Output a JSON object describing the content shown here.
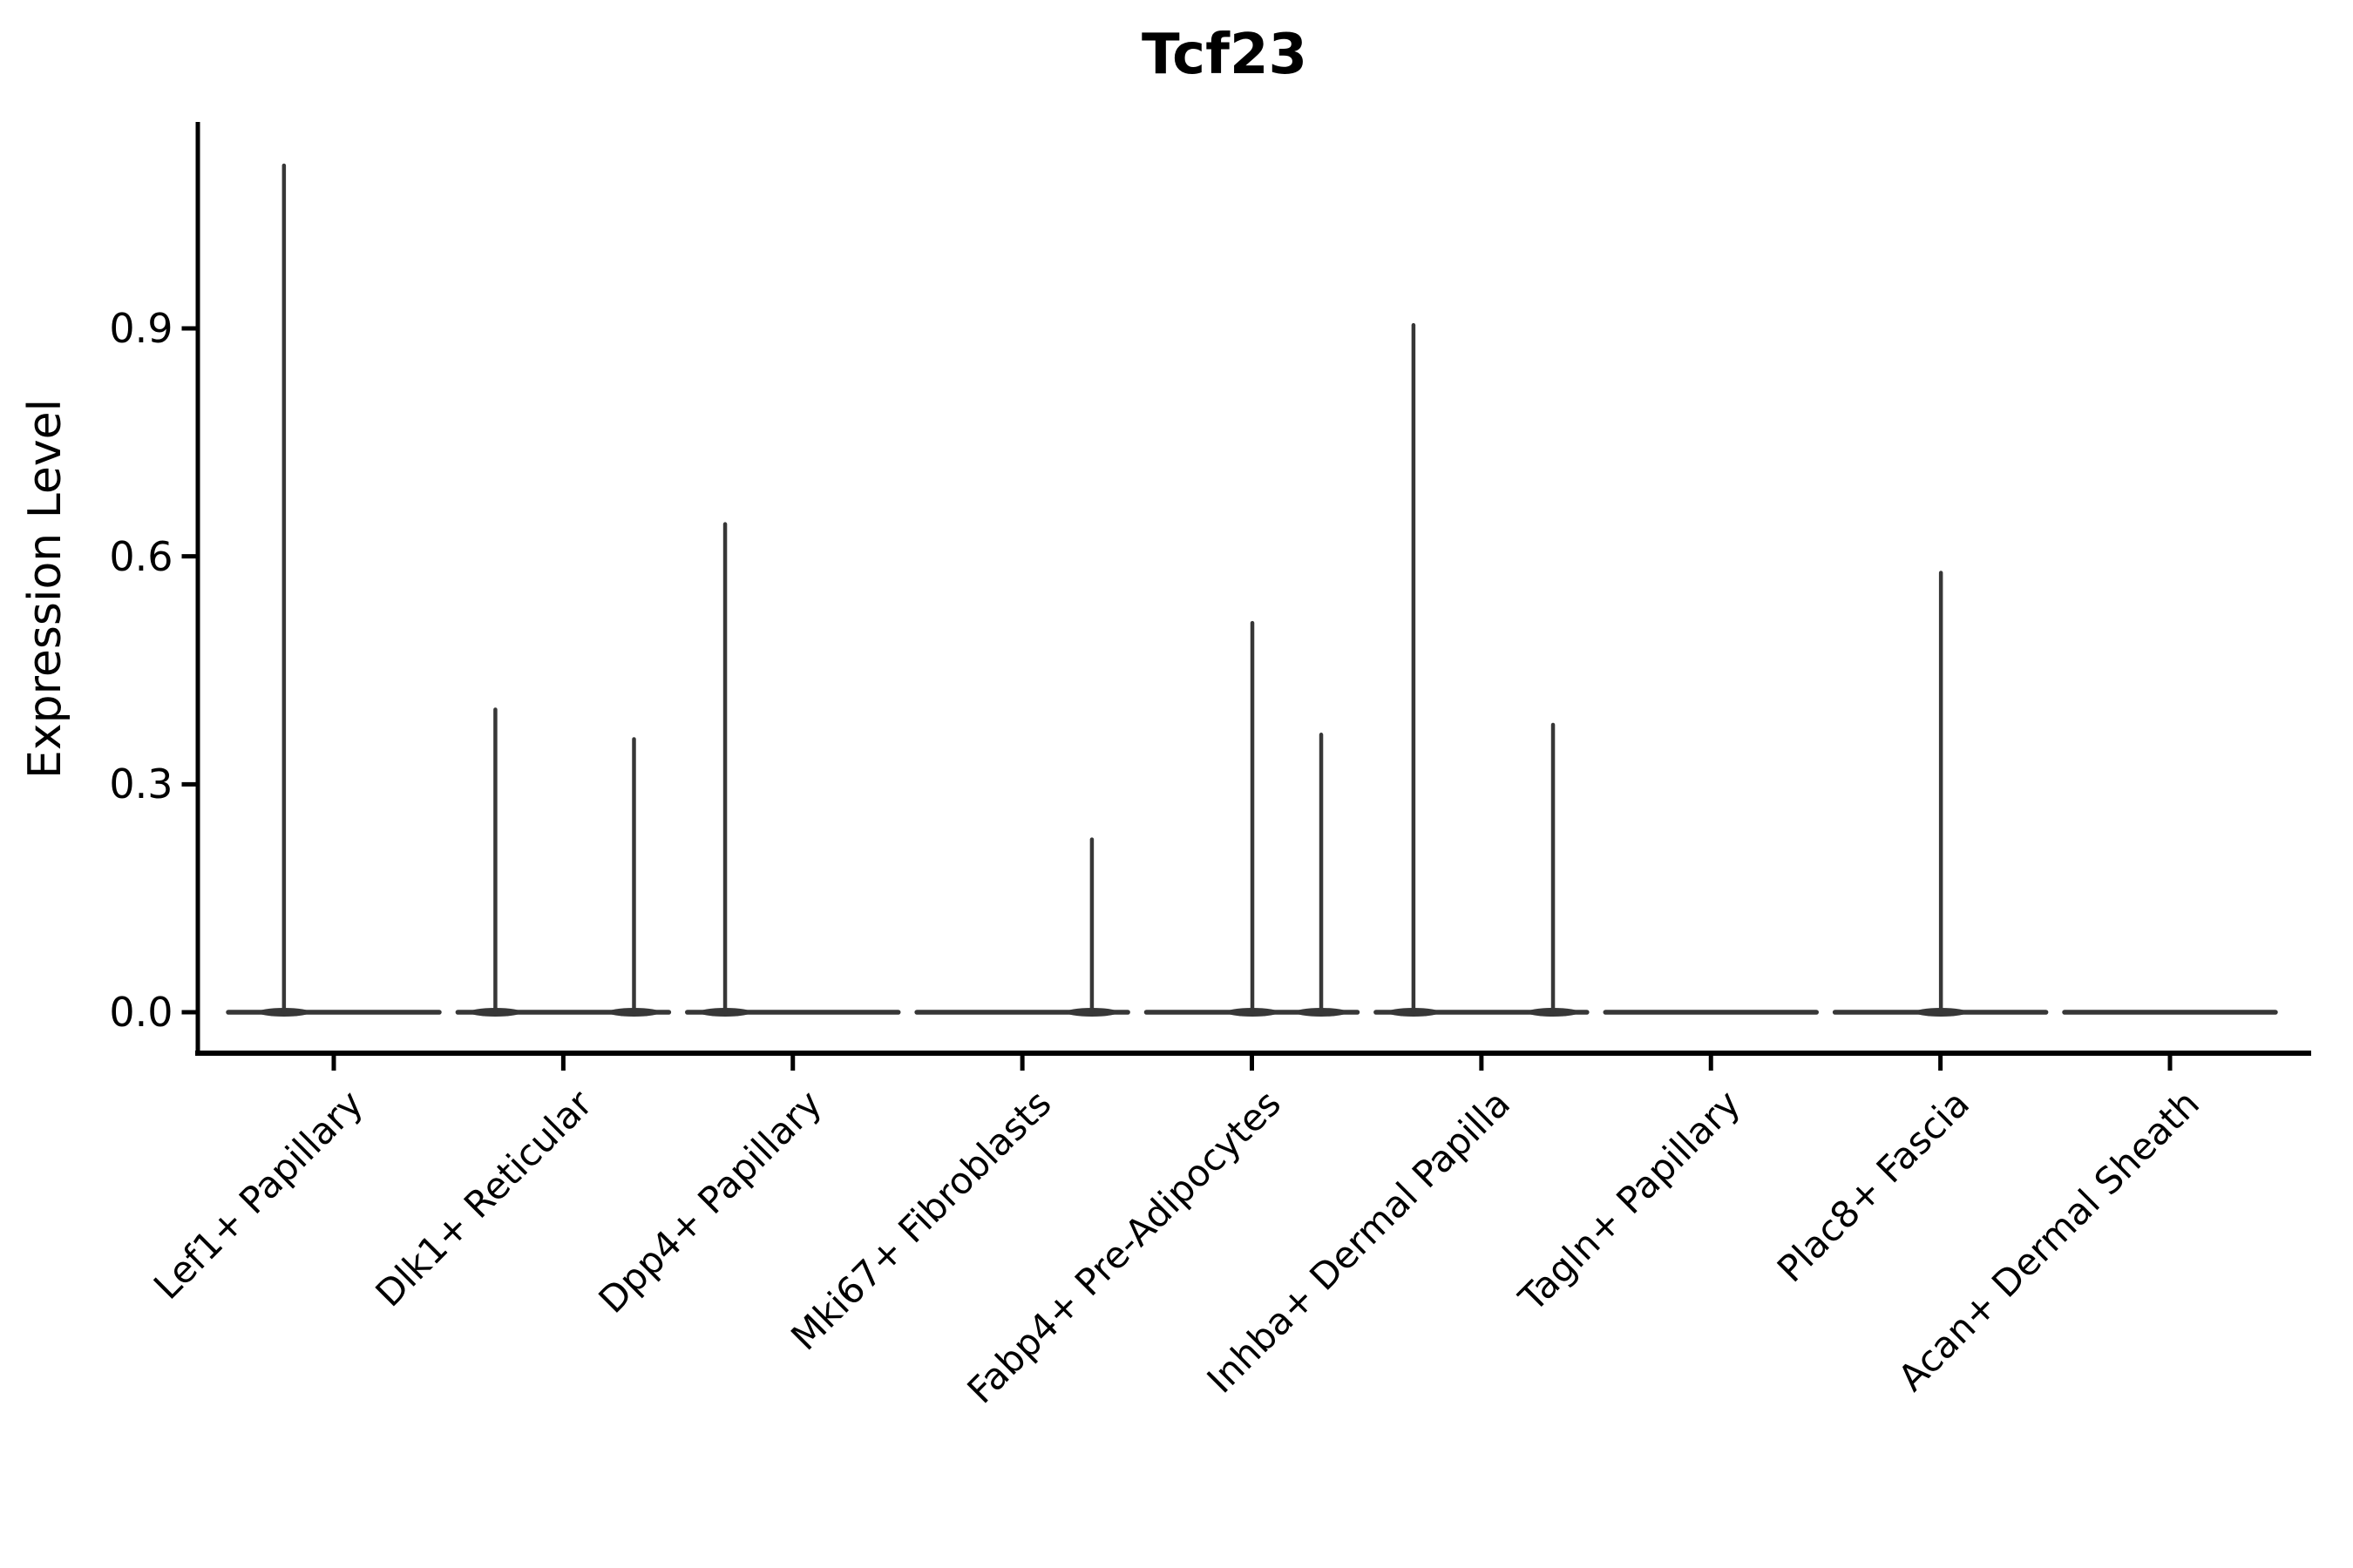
{
  "figure": {
    "background_color": "#ffffff"
  },
  "style": {
    "violin_color": "#373737",
    "axis_color": "#000000",
    "text_color": "#000000"
  },
  "chart_data": {
    "type": "violin",
    "title": "Tcf23",
    "xlabel": "",
    "ylabel": "Expression Level",
    "yticks": [
      "0.0",
      "0.3",
      "0.6",
      "0.9"
    ],
    "ytick_values": [
      0.0,
      0.3,
      0.6,
      0.9
    ],
    "ylim": [
      0.0,
      1.2
    ],
    "grid": false,
    "legend": null,
    "xticklabel_rotation": 45,
    "categories": [
      {
        "label": "Lef1+ Papillary",
        "baseline_value": 0.0,
        "spikes": [
          {
            "value": 1.117,
            "offset_frac": -0.217
          }
        ]
      },
      {
        "label": "Dlk1+ Reticular",
        "baseline_value": 0.0,
        "spikes": [
          {
            "value": 0.401,
            "offset_frac": -0.296
          },
          {
            "value": 0.362,
            "offset_frac": 0.308
          }
        ]
      },
      {
        "label": "Dpp4+ Papillary",
        "baseline_value": 0.0,
        "spikes": [
          {
            "value": 0.645,
            "offset_frac": -0.295
          }
        ]
      },
      {
        "label": "Mki67+ Fibroblasts",
        "baseline_value": 0.0,
        "spikes": [
          {
            "value": 0.23,
            "offset_frac": 0.303
          }
        ]
      },
      {
        "label": "Fabp4+ Pre-Adipocytes",
        "baseline_value": 0.0,
        "spikes": [
          {
            "value": 0.515,
            "offset_frac": 0.002
          },
          {
            "value": 0.368,
            "offset_frac": 0.302
          }
        ]
      },
      {
        "label": "Inhba+ Dermal Papilla",
        "baseline_value": 0.0,
        "spikes": [
          {
            "value": 0.907,
            "offset_frac": -0.296
          },
          {
            "value": 0.381,
            "offset_frac": 0.312
          }
        ]
      },
      {
        "label": "Tagln+ Papillary",
        "baseline_value": 0.0,
        "spikes": []
      },
      {
        "label": "Plac8+ Fascia",
        "baseline_value": 0.0,
        "spikes": [
          {
            "value": 0.581,
            "offset_frac": 0.002
          }
        ]
      },
      {
        "label": "Acan+ Dermal Sheath",
        "baseline_value": 0.0,
        "spikes": []
      }
    ]
  }
}
